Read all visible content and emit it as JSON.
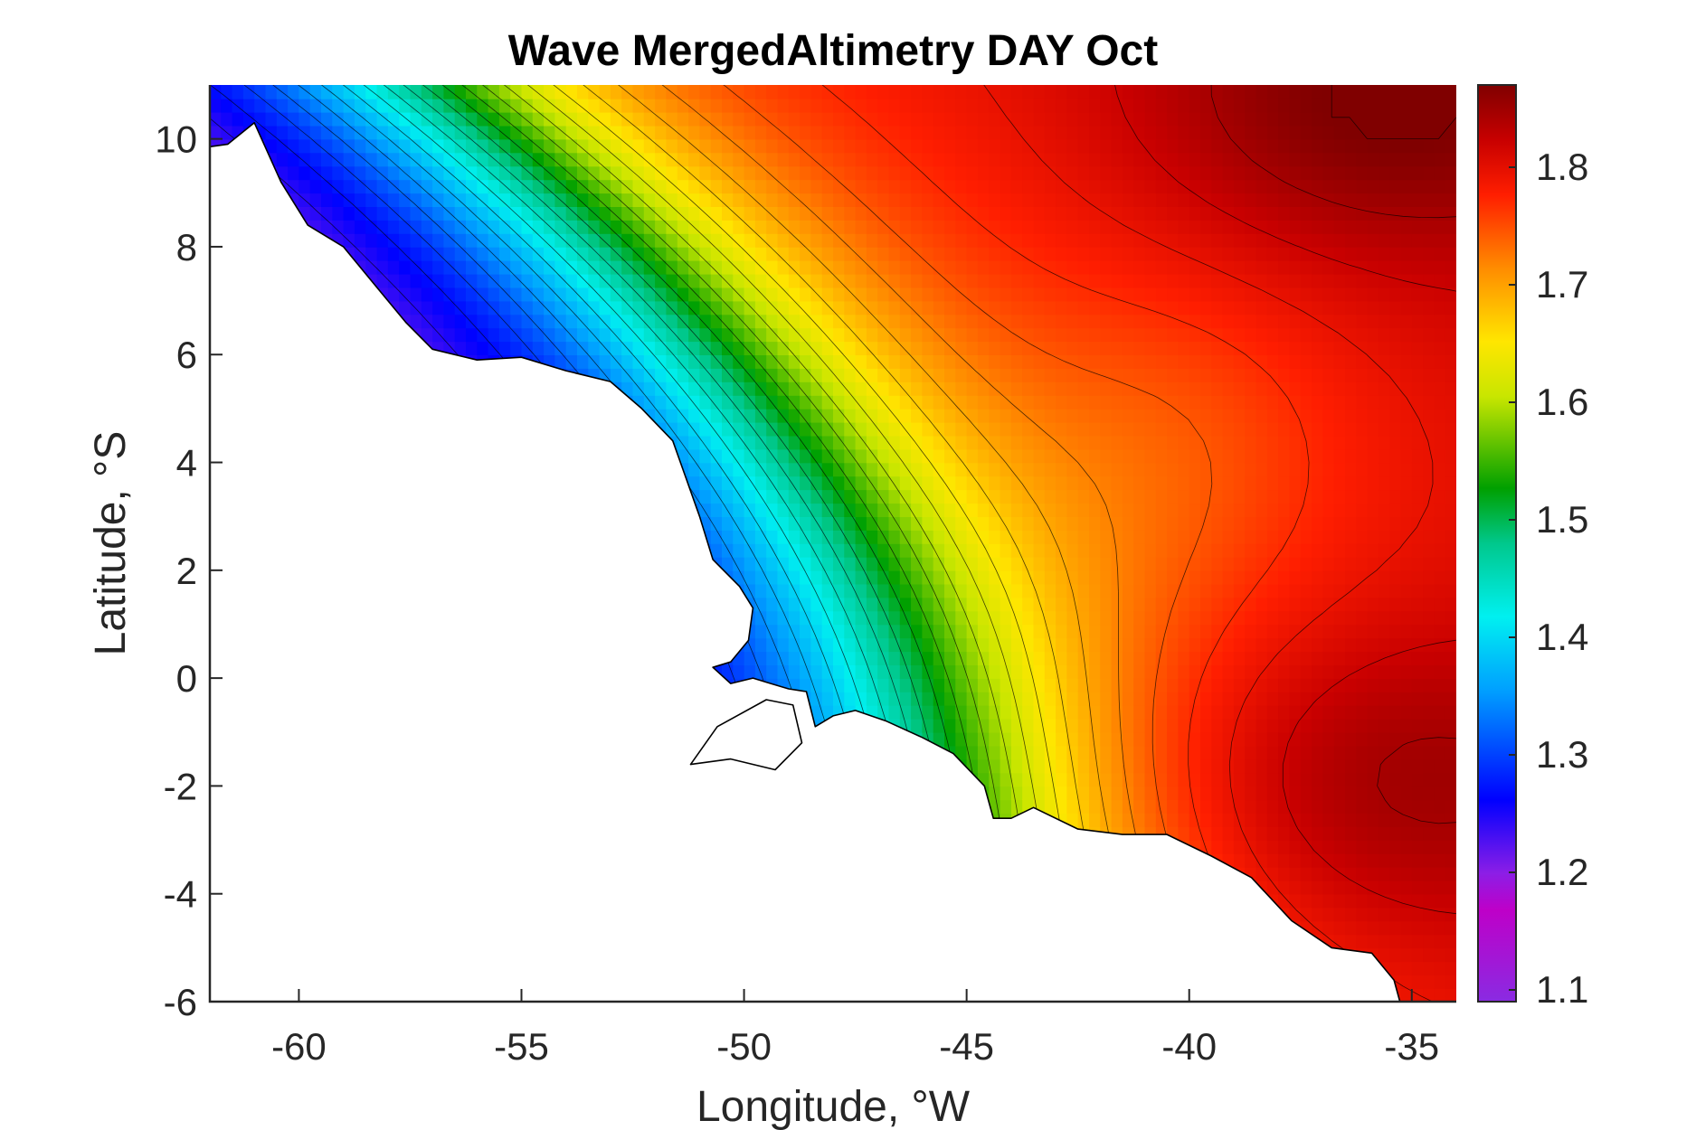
{
  "chart_data": {
    "type": "heatmap",
    "title": "Wave MergedAltimetry DAY Oct",
    "xlabel": "Longitude, °W",
    "ylabel": "Latitude, °S",
    "xlim": [
      -62,
      -34
    ],
    "ylim": [
      -6,
      11
    ],
    "xticks": [
      -60,
      -55,
      -50,
      -45,
      -40,
      -35
    ],
    "yticks": [
      -6,
      -4,
      -2,
      0,
      2,
      4,
      6,
      8,
      10
    ],
    "colorbar": {
      "range": [
        1.09,
        1.87
      ],
      "ticks": [
        1.1,
        1.2,
        1.3,
        1.4,
        1.5,
        1.6,
        1.7,
        1.8
      ],
      "colormap": "jet-extended (purple-blue-cyan-green-yellow-orange-red-darkred)"
    },
    "approx_values": [
      {
        "lon": -61,
        "lat": 10.5,
        "value": 1.2
      },
      {
        "lon": -57,
        "lat": 7,
        "value": 1.32
      },
      {
        "lon": -53,
        "lat": 9,
        "value": 1.55
      },
      {
        "lon": -50,
        "lat": 1,
        "value": 1.3
      },
      {
        "lon": -48,
        "lat": 0,
        "value": 1.42
      },
      {
        "lon": -46,
        "lat": 0,
        "value": 1.55
      },
      {
        "lon": -45,
        "lat": 2,
        "value": 1.68
      },
      {
        "lon": -44,
        "lat": -2.5,
        "value": 1.7
      },
      {
        "lon": -42,
        "lat": 4,
        "value": 1.75
      },
      {
        "lon": -38,
        "lat": 5,
        "value": 1.78
      },
      {
        "lon": -36,
        "lat": 10.5,
        "value": 1.85
      },
      {
        "lon": -37,
        "lat": -2,
        "value": 1.86
      },
      {
        "lon": -35,
        "lat": -5,
        "value": 1.85
      }
    ]
  },
  "colors": {
    "axis": "#262626",
    "land": "#ffffff"
  }
}
